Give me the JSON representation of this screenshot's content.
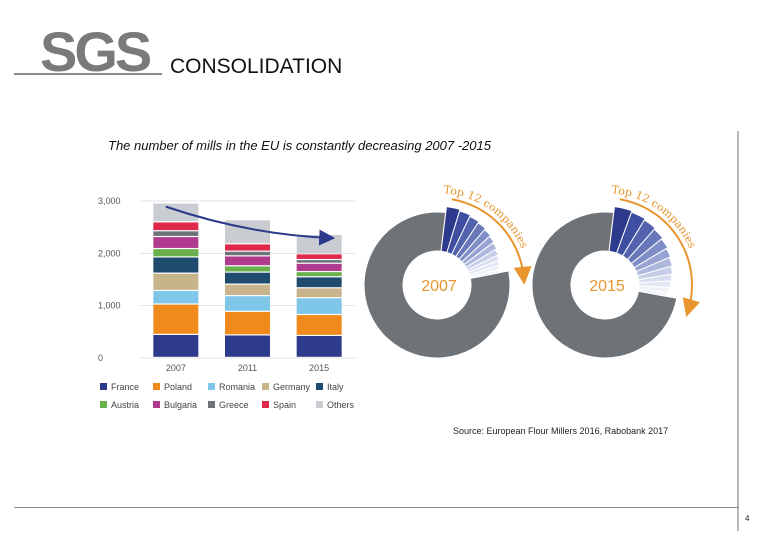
{
  "header": {
    "logo_text": "SGS",
    "title": "CONSOLIDATION"
  },
  "slide": {
    "subtitle": "The number of mills in the EU is constantly decreasing 2007 -2015",
    "source": "Source: European Flour Millers 2016, Rabobank 2017",
    "page_number": "4"
  },
  "colors": {
    "France": "#2e3a8c",
    "Poland": "#f08a1c",
    "Romania": "#7fc7e8",
    "Germany": "#c8b48a",
    "Italy": "#1e4b6e",
    "Austria": "#6ab04c",
    "Bulgaria": "#b03a8e",
    "Greece": "#6e7378",
    "Spain": "#e0284a",
    "Others": "#c9ccd0",
    "accent": "#e8952e",
    "trend_arrow": "#2b3a8a"
  },
  "chart_data": [
    {
      "type": "bar",
      "stacked": true,
      "title": "",
      "xlabel": "",
      "ylabel": "",
      "categories": [
        "2007",
        "2011",
        "2015"
      ],
      "ylim": [
        0,
        3000
      ],
      "yticks": [
        "0",
        "1,000",
        "2,000",
        "3,000"
      ],
      "series": [
        {
          "name": "France",
          "values": [
            440,
            430,
            420
          ]
        },
        {
          "name": "Poland",
          "values": [
            580,
            450,
            400
          ]
        },
        {
          "name": "Romania",
          "values": [
            260,
            300,
            320
          ]
        },
        {
          "name": "Germany",
          "values": [
            330,
            220,
            190
          ]
        },
        {
          "name": "Italy",
          "values": [
            310,
            230,
            210
          ]
        },
        {
          "name": "Austria",
          "values": [
            160,
            120,
            100
          ]
        },
        {
          "name": "Bulgaria",
          "values": [
            230,
            190,
            160
          ]
        },
        {
          "name": "Greece",
          "values": [
            110,
            90,
            70
          ]
        },
        {
          "name": "Spain",
          "values": [
            170,
            140,
            110
          ]
        },
        {
          "name": "Others",
          "values": [
            360,
            460,
            370
          ]
        }
      ],
      "legend": [
        "France",
        "Poland",
        "Romania",
        "Germany",
        "Italy",
        "Austria",
        "Bulgaria",
        "Greece",
        "Spain",
        "Others"
      ],
      "legend_position": "bottom",
      "annotation": "downward trend arrow from 2007 to 2015"
    },
    {
      "type": "pie",
      "style": "donut",
      "charts": [
        {
          "label": "2007",
          "top12_share": 20,
          "rest_share": 80,
          "top12_text": "Top 12 companies"
        },
        {
          "label": "2015",
          "top12_share": 26,
          "rest_share": 74,
          "top12_text": "Top 12 companies"
        }
      ]
    }
  ]
}
